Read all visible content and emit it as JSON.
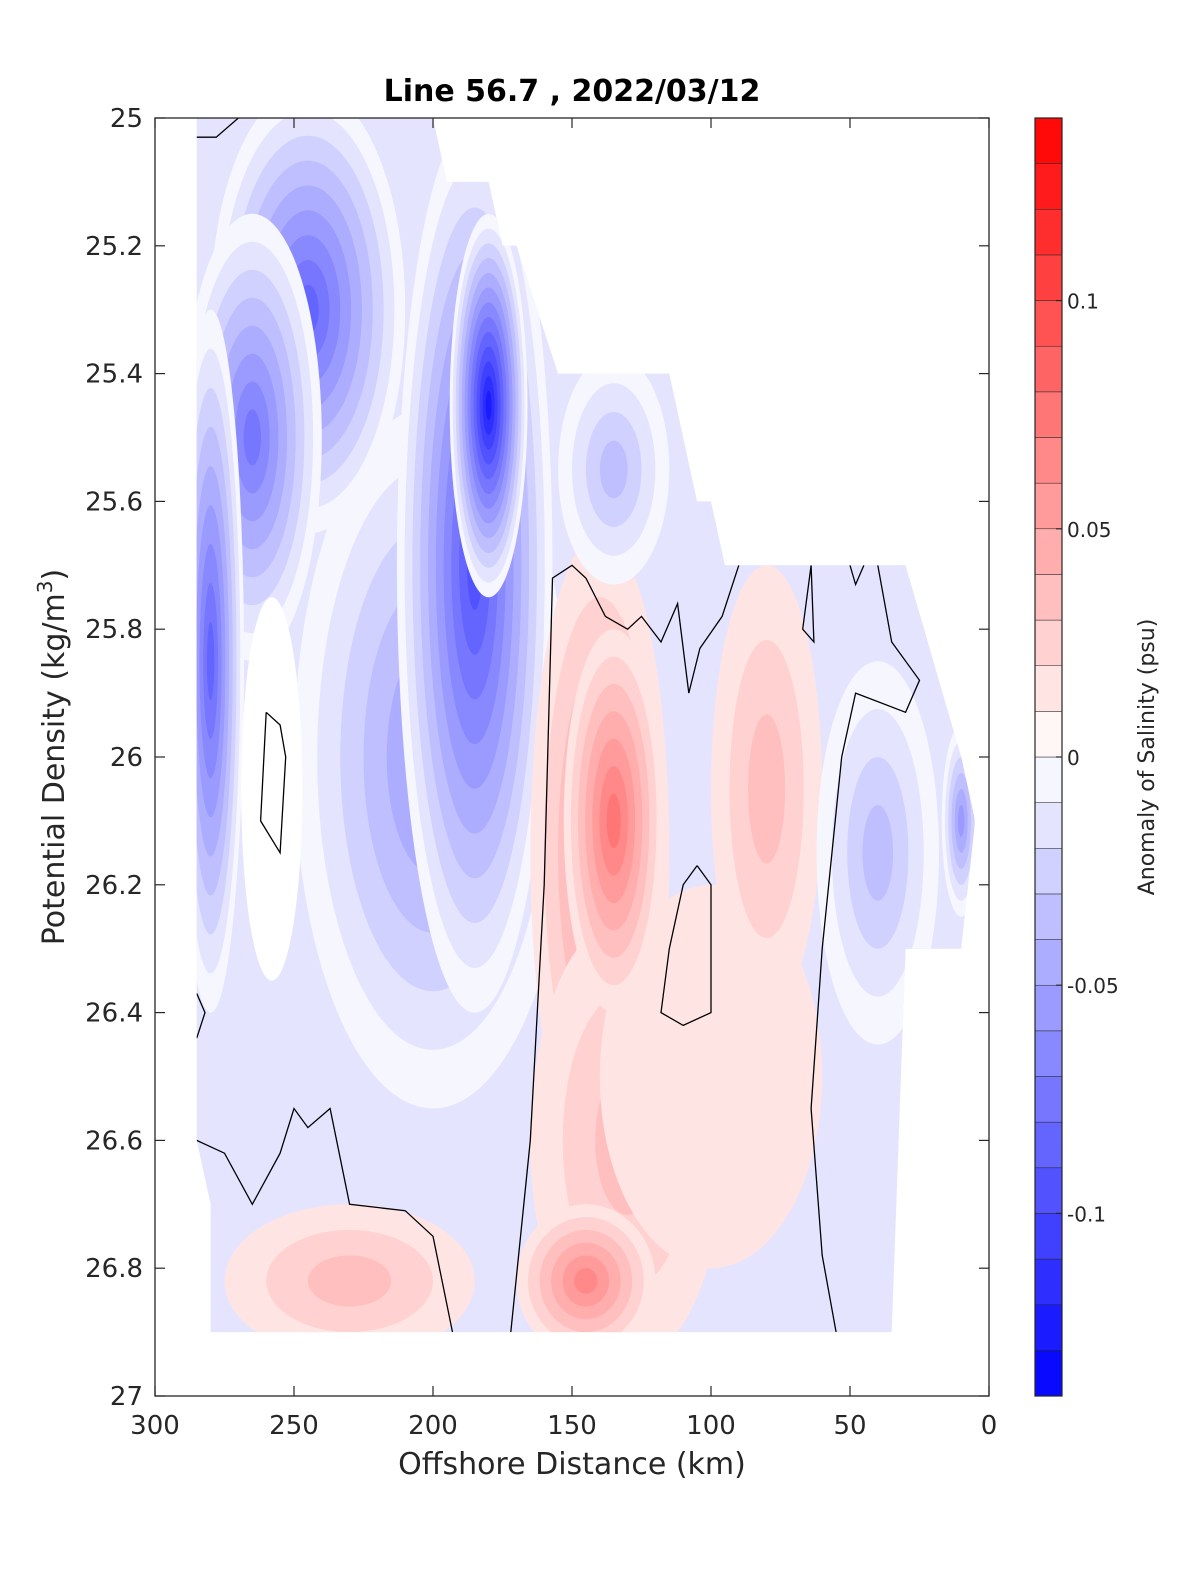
{
  "chart_data": {
    "type": "heatmap",
    "title": "Line 56.7 , 2022/03/12",
    "xlabel": "Offshore Distance (km)",
    "ylabel_base": "Potential Density (kg/m",
    "ylabel_sup": "3",
    "ylabel_close": ")",
    "colorbar_label": "Anomaly of Salinity (psu)",
    "xlim": [
      300,
      0
    ],
    "ylim": [
      27,
      25
    ],
    "x_reversed": true,
    "y_reversed": true,
    "grid": false,
    "x_ticks": [
      300,
      250,
      200,
      150,
      100,
      50,
      0
    ],
    "x_tick_labels": [
      "300",
      "250",
      "200",
      "150",
      "100",
      "50",
      "0"
    ],
    "y_ticks": [
      25,
      25.2,
      25.4,
      25.6,
      25.8,
      26,
      26.2,
      26.4,
      26.6,
      26.8,
      27
    ],
    "y_tick_labels": [
      "25",
      "25.2",
      "25.4",
      "25.6",
      "25.8",
      "26",
      "26.2",
      "26.4",
      "26.6",
      "26.8",
      "27"
    ],
    "colorbar": {
      "min": -0.14,
      "max": 0.14,
      "levels": 28,
      "low_color": "#0000ff",
      "mid_color": "#ffffff",
      "high_color": "#ff0000",
      "ticks": [
        -0.1,
        -0.05,
        0,
        0.05,
        0.1
      ],
      "tick_labels": [
        "-0.1",
        "-0.05",
        "0",
        "0.05",
        "0.1"
      ]
    },
    "zero_contour_color": "#000000",
    "data_extent_top": [
      [
        285,
        25.0
      ],
      [
        200,
        25.0
      ],
      [
        195,
        25.1
      ],
      [
        180,
        25.1
      ],
      [
        175,
        25.2
      ],
      [
        170,
        25.2
      ],
      [
        155,
        25.4
      ],
      [
        115,
        25.4
      ],
      [
        105,
        25.6
      ],
      [
        100,
        25.6
      ],
      [
        95,
        25.7
      ],
      [
        30,
        25.7
      ],
      [
        10,
        26.0
      ],
      [
        5,
        26.1
      ],
      [
        10,
        26.3
      ]
    ],
    "data_extent_bottom": [
      [
        10,
        26.3
      ],
      [
        30,
        26.3
      ],
      [
        35,
        26.9
      ],
      [
        280,
        26.9
      ],
      [
        280,
        26.7
      ],
      [
        285,
        26.6
      ]
    ],
    "anomaly_features": [
      {
        "x": 180,
        "y": 25.45,
        "rx": 14,
        "ry": 0.3,
        "value": -0.13
      },
      {
        "x": 185,
        "y": 25.7,
        "rx": 28,
        "ry": 0.7,
        "value": -0.1
      },
      {
        "x": 245,
        "y": 25.3,
        "rx": 35,
        "ry": 0.35,
        "value": -0.09
      },
      {
        "x": 280,
        "y": 25.85,
        "rx": 12,
        "ry": 0.55,
        "value": -0.09
      },
      {
        "x": 265,
        "y": 25.5,
        "rx": 25,
        "ry": 0.35,
        "value": -0.08
      },
      {
        "x": 200,
        "y": 26.0,
        "rx": 50,
        "ry": 0.55,
        "value": -0.06
      },
      {
        "x": 135,
        "y": 25.55,
        "rx": 20,
        "ry": 0.18,
        "value": -0.04
      },
      {
        "x": 40,
        "y": 26.15,
        "rx": 22,
        "ry": 0.3,
        "value": -0.04
      },
      {
        "x": 10,
        "y": 26.1,
        "rx": 7,
        "ry": 0.15,
        "value": -0.06
      },
      {
        "x": 258,
        "y": 26.05,
        "rx": 11,
        "ry": 0.3,
        "value": 0.0
      },
      {
        "x": 135,
        "y": 26.1,
        "rx": 18,
        "ry": 0.3,
        "value": 0.07
      },
      {
        "x": 140,
        "y": 26.15,
        "rx": 25,
        "ry": 0.5,
        "value": 0.05
      },
      {
        "x": 145,
        "y": 26.82,
        "rx": 25,
        "ry": 0.12,
        "value": 0.06
      },
      {
        "x": 130,
        "y": 26.6,
        "rx": 35,
        "ry": 0.35,
        "value": 0.03
      },
      {
        "x": 80,
        "y": 26.05,
        "rx": 20,
        "ry": 0.35,
        "value": 0.03
      },
      {
        "x": 230,
        "y": 26.82,
        "rx": 45,
        "ry": 0.12,
        "value": 0.03
      },
      {
        "x": 100,
        "y": 26.5,
        "rx": 40,
        "ry": 0.3,
        "value": 0.01
      }
    ],
    "zero_contours": [
      [
        [
          285,
          25.03
        ],
        [
          278,
          25.03
        ],
        [
          270,
          25.0
        ]
      ],
      [
        [
          285,
          26.6
        ],
        [
          275,
          26.62
        ],
        [
          265,
          26.7
        ],
        [
          255,
          26.62
        ],
        [
          250,
          26.55
        ],
        [
          245,
          26.58
        ],
        [
          237,
          26.55
        ],
        [
          230,
          26.7
        ],
        [
          210,
          26.71
        ],
        [
          200,
          26.75
        ],
        [
          193,
          26.9
        ]
      ],
      [
        [
          172,
          26.9
        ],
        [
          165,
          26.6
        ],
        [
          160,
          26.2
        ],
        [
          157,
          25.72
        ],
        [
          150,
          25.7
        ],
        [
          145,
          25.72
        ],
        [
          138,
          25.78
        ],
        [
          130,
          25.8
        ],
        [
          125,
          25.78
        ],
        [
          118,
          25.82
        ],
        [
          112,
          25.76
        ],
        [
          108,
          25.9
        ],
        [
          104,
          25.83
        ],
        [
          96,
          25.78
        ],
        [
          90,
          25.7
        ]
      ],
      [
        [
          64,
          25.7
        ],
        [
          63,
          25.82
        ],
        [
          67,
          25.8
        ],
        [
          64,
          25.7
        ]
      ],
      [
        [
          50,
          25.7
        ],
        [
          48,
          25.73
        ],
        [
          45,
          25.7
        ]
      ],
      [
        [
          40,
          25.7
        ],
        [
          35,
          25.82
        ],
        [
          25,
          25.88
        ],
        [
          30,
          25.93
        ],
        [
          48,
          25.9
        ],
        [
          53,
          26.0
        ],
        [
          60,
          26.3
        ],
        [
          64,
          26.55
        ],
        [
          60,
          26.78
        ],
        [
          55,
          26.9
        ]
      ],
      [
        [
          260,
          25.93
        ],
        [
          255,
          25.95
        ],
        [
          253,
          26.0
        ],
        [
          255,
          26.15
        ],
        [
          262,
          26.1
        ],
        [
          260,
          25.93
        ]
      ],
      [
        [
          285,
          26.37
        ],
        [
          282,
          26.4
        ],
        [
          285,
          26.44
        ]
      ],
      [
        [
          105,
          26.17
        ],
        [
          100,
          26.2
        ],
        [
          100,
          26.4
        ],
        [
          110,
          26.42
        ],
        [
          118,
          26.4
        ],
        [
          115,
          26.3
        ],
        [
          110,
          26.2
        ],
        [
          105,
          26.17
        ]
      ]
    ]
  }
}
